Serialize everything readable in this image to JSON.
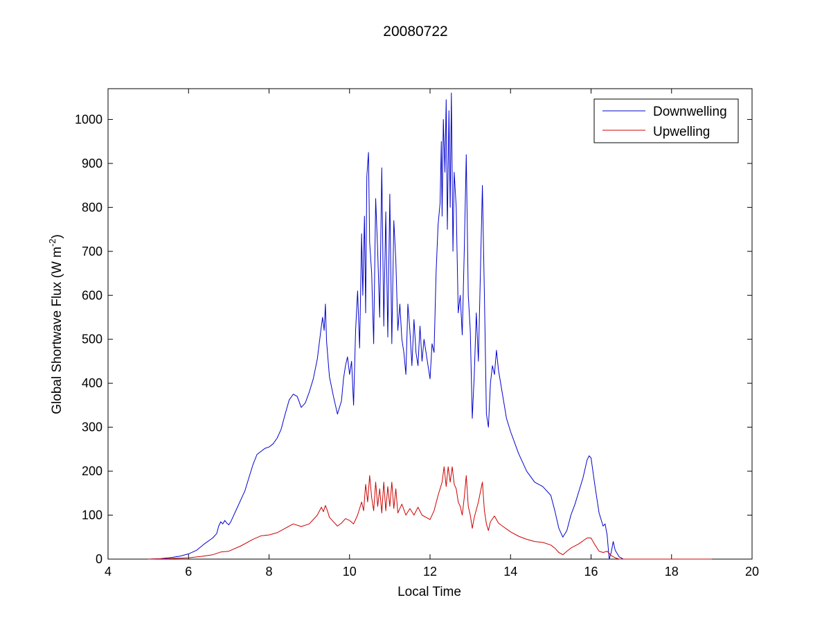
{
  "chart_data": {
    "type": "line",
    "title": "20080722",
    "xlabel": "Local Time",
    "ylabel_main": "Global Shortwave Flux (W m",
    "ylabel_sup": "-2",
    "ylabel_close": ")",
    "xlim": [
      4,
      20
    ],
    "ylim": [
      0,
      1070
    ],
    "xticks": [
      4,
      6,
      8,
      10,
      12,
      14,
      16,
      18,
      20
    ],
    "yticks": [
      0,
      100,
      200,
      300,
      400,
      500,
      600,
      700,
      800,
      900,
      1000
    ],
    "grid": false,
    "legend_position": "top-right",
    "series": [
      {
        "name": "Downwelling",
        "color": "#0000cc",
        "points": [
          [
            5.0,
            0
          ],
          [
            5.3,
            1
          ],
          [
            5.6,
            4
          ],
          [
            5.8,
            7
          ],
          [
            6.0,
            12
          ],
          [
            6.2,
            20
          ],
          [
            6.4,
            35
          ],
          [
            6.6,
            48
          ],
          [
            6.7,
            58
          ],
          [
            6.75,
            75
          ],
          [
            6.8,
            85
          ],
          [
            6.85,
            80
          ],
          [
            6.9,
            88
          ],
          [
            6.95,
            82
          ],
          [
            7.0,
            78
          ],
          [
            7.05,
            85
          ],
          [
            7.1,
            95
          ],
          [
            7.2,
            115
          ],
          [
            7.3,
            135
          ],
          [
            7.4,
            155
          ],
          [
            7.5,
            185
          ],
          [
            7.6,
            215
          ],
          [
            7.7,
            238
          ],
          [
            7.8,
            245
          ],
          [
            7.9,
            252
          ],
          [
            8.0,
            255
          ],
          [
            8.1,
            262
          ],
          [
            8.2,
            275
          ],
          [
            8.3,
            295
          ],
          [
            8.4,
            330
          ],
          [
            8.5,
            362
          ],
          [
            8.6,
            375
          ],
          [
            8.7,
            370
          ],
          [
            8.8,
            345
          ],
          [
            8.9,
            355
          ],
          [
            9.0,
            380
          ],
          [
            9.1,
            410
          ],
          [
            9.2,
            455
          ],
          [
            9.3,
            530
          ],
          [
            9.33,
            550
          ],
          [
            9.37,
            520
          ],
          [
            9.4,
            580
          ],
          [
            9.43,
            495
          ],
          [
            9.5,
            415
          ],
          [
            9.6,
            370
          ],
          [
            9.7,
            330
          ],
          [
            9.8,
            360
          ],
          [
            9.85,
            410
          ],
          [
            9.9,
            440
          ],
          [
            9.95,
            460
          ],
          [
            10.0,
            420
          ],
          [
            10.05,
            450
          ],
          [
            10.1,
            350
          ],
          [
            10.15,
            520
          ],
          [
            10.2,
            610
          ],
          [
            10.25,
            480
          ],
          [
            10.3,
            740
          ],
          [
            10.33,
            600
          ],
          [
            10.37,
            780
          ],
          [
            10.4,
            560
          ],
          [
            10.43,
            870
          ],
          [
            10.47,
            925
          ],
          [
            10.5,
            720
          ],
          [
            10.55,
            650
          ],
          [
            10.6,
            490
          ],
          [
            10.65,
            820
          ],
          [
            10.7,
            700
          ],
          [
            10.75,
            550
          ],
          [
            10.8,
            890
          ],
          [
            10.85,
            530
          ],
          [
            10.9,
            790
          ],
          [
            10.95,
            505
          ],
          [
            11.0,
            830
          ],
          [
            11.05,
            490
          ],
          [
            11.1,
            770
          ],
          [
            11.15,
            680
          ],
          [
            11.2,
            520
          ],
          [
            11.25,
            580
          ],
          [
            11.3,
            500
          ],
          [
            11.35,
            470
          ],
          [
            11.4,
            420
          ],
          [
            11.45,
            580
          ],
          [
            11.5,
            520
          ],
          [
            11.55,
            440
          ],
          [
            11.6,
            545
          ],
          [
            11.65,
            470
          ],
          [
            11.7,
            440
          ],
          [
            11.75,
            530
          ],
          [
            11.8,
            450
          ],
          [
            11.85,
            500
          ],
          [
            11.9,
            470
          ],
          [
            11.95,
            440
          ],
          [
            12.0,
            410
          ],
          [
            12.05,
            490
          ],
          [
            12.1,
            470
          ],
          [
            12.15,
            650
          ],
          [
            12.2,
            760
          ],
          [
            12.25,
            810
          ],
          [
            12.28,
            950
          ],
          [
            12.3,
            780
          ],
          [
            12.33,
            1000
          ],
          [
            12.37,
            880
          ],
          [
            12.4,
            1045
          ],
          [
            12.43,
            750
          ],
          [
            12.47,
            1020
          ],
          [
            12.5,
            800
          ],
          [
            12.53,
            1060
          ],
          [
            12.57,
            700
          ],
          [
            12.6,
            880
          ],
          [
            12.65,
            800
          ],
          [
            12.7,
            560
          ],
          [
            12.75,
            600
          ],
          [
            12.8,
            510
          ],
          [
            12.85,
            700
          ],
          [
            12.9,
            920
          ],
          [
            12.95,
            600
          ],
          [
            13.0,
            520
          ],
          [
            13.05,
            320
          ],
          [
            13.1,
            420
          ],
          [
            13.15,
            560
          ],
          [
            13.2,
            450
          ],
          [
            13.25,
            650
          ],
          [
            13.3,
            850
          ],
          [
            13.35,
            600
          ],
          [
            13.4,
            330
          ],
          [
            13.45,
            300
          ],
          [
            13.5,
            400
          ],
          [
            13.55,
            440
          ],
          [
            13.6,
            420
          ],
          [
            13.65,
            475
          ],
          [
            13.7,
            430
          ],
          [
            13.8,
            375
          ],
          [
            13.9,
            320
          ],
          [
            14.0,
            290
          ],
          [
            14.2,
            240
          ],
          [
            14.4,
            200
          ],
          [
            14.6,
            175
          ],
          [
            14.8,
            165
          ],
          [
            15.0,
            145
          ],
          [
            15.1,
            110
          ],
          [
            15.2,
            70
          ],
          [
            15.3,
            50
          ],
          [
            15.4,
            65
          ],
          [
            15.5,
            100
          ],
          [
            15.6,
            125
          ],
          [
            15.7,
            155
          ],
          [
            15.8,
            185
          ],
          [
            15.9,
            225
          ],
          [
            15.95,
            235
          ],
          [
            16.0,
            230
          ],
          [
            16.1,
            165
          ],
          [
            16.2,
            105
          ],
          [
            16.3,
            75
          ],
          [
            16.35,
            80
          ],
          [
            16.4,
            55
          ],
          [
            16.45,
            0
          ],
          [
            16.5,
            15
          ],
          [
            16.55,
            40
          ],
          [
            16.6,
            20
          ],
          [
            16.7,
            5
          ],
          [
            16.8,
            0
          ],
          [
            17.0,
            0
          ],
          [
            17.5,
            0
          ],
          [
            18.0,
            0
          ],
          [
            18.5,
            0
          ],
          [
            19.0,
            0
          ]
        ]
      },
      {
        "name": "Upwelling",
        "color": "#cc0000",
        "points": [
          [
            5.0,
            0
          ],
          [
            5.5,
            1
          ],
          [
            6.0,
            3
          ],
          [
            6.3,
            6
          ],
          [
            6.6,
            10
          ],
          [
            6.8,
            16
          ],
          [
            7.0,
            18
          ],
          [
            7.3,
            30
          ],
          [
            7.6,
            45
          ],
          [
            7.8,
            53
          ],
          [
            8.0,
            55
          ],
          [
            8.2,
            60
          ],
          [
            8.4,
            70
          ],
          [
            8.6,
            80
          ],
          [
            8.8,
            74
          ],
          [
            9.0,
            80
          ],
          [
            9.2,
            100
          ],
          [
            9.3,
            118
          ],
          [
            9.35,
            108
          ],
          [
            9.4,
            122
          ],
          [
            9.45,
            110
          ],
          [
            9.5,
            95
          ],
          [
            9.6,
            85
          ],
          [
            9.7,
            75
          ],
          [
            9.8,
            82
          ],
          [
            9.9,
            92
          ],
          [
            10.0,
            88
          ],
          [
            10.1,
            80
          ],
          [
            10.2,
            100
          ],
          [
            10.3,
            130
          ],
          [
            10.35,
            110
          ],
          [
            10.4,
            170
          ],
          [
            10.45,
            130
          ],
          [
            10.5,
            190
          ],
          [
            10.55,
            140
          ],
          [
            10.6,
            110
          ],
          [
            10.65,
            175
          ],
          [
            10.7,
            120
          ],
          [
            10.75,
            160
          ],
          [
            10.8,
            105
          ],
          [
            10.85,
            175
          ],
          [
            10.9,
            110
          ],
          [
            10.95,
            165
          ],
          [
            11.0,
            120
          ],
          [
            11.05,
            175
          ],
          [
            11.1,
            115
          ],
          [
            11.15,
            160
          ],
          [
            11.2,
            105
          ],
          [
            11.3,
            125
          ],
          [
            11.4,
            100
          ],
          [
            11.5,
            115
          ],
          [
            11.6,
            100
          ],
          [
            11.7,
            118
          ],
          [
            11.8,
            100
          ],
          [
            11.9,
            95
          ],
          [
            12.0,
            90
          ],
          [
            12.1,
            110
          ],
          [
            12.2,
            145
          ],
          [
            12.3,
            175
          ],
          [
            12.35,
            210
          ],
          [
            12.4,
            165
          ],
          [
            12.45,
            210
          ],
          [
            12.5,
            175
          ],
          [
            12.55,
            210
          ],
          [
            12.6,
            170
          ],
          [
            12.65,
            160
          ],
          [
            12.7,
            130
          ],
          [
            12.75,
            120
          ],
          [
            12.8,
            100
          ],
          [
            12.85,
            140
          ],
          [
            12.9,
            190
          ],
          [
            12.95,
            120
          ],
          [
            13.0,
            100
          ],
          [
            13.05,
            70
          ],
          [
            13.1,
            95
          ],
          [
            13.2,
            130
          ],
          [
            13.3,
            175
          ],
          [
            13.35,
            110
          ],
          [
            13.4,
            80
          ],
          [
            13.45,
            65
          ],
          [
            13.5,
            85
          ],
          [
            13.6,
            98
          ],
          [
            13.7,
            82
          ],
          [
            13.8,
            75
          ],
          [
            14.0,
            62
          ],
          [
            14.2,
            52
          ],
          [
            14.4,
            45
          ],
          [
            14.6,
            40
          ],
          [
            14.8,
            38
          ],
          [
            15.0,
            32
          ],
          [
            15.1,
            25
          ],
          [
            15.2,
            15
          ],
          [
            15.3,
            10
          ],
          [
            15.4,
            18
          ],
          [
            15.5,
            25
          ],
          [
            15.7,
            35
          ],
          [
            15.9,
            48
          ],
          [
            16.0,
            48
          ],
          [
            16.1,
            32
          ],
          [
            16.2,
            18
          ],
          [
            16.3,
            15
          ],
          [
            16.4,
            18
          ],
          [
            16.5,
            8
          ],
          [
            16.6,
            3
          ],
          [
            16.7,
            0
          ],
          [
            17.0,
            0
          ],
          [
            17.5,
            0
          ],
          [
            18.0,
            0
          ],
          [
            18.5,
            0
          ],
          [
            19.0,
            0
          ]
        ]
      }
    ]
  }
}
